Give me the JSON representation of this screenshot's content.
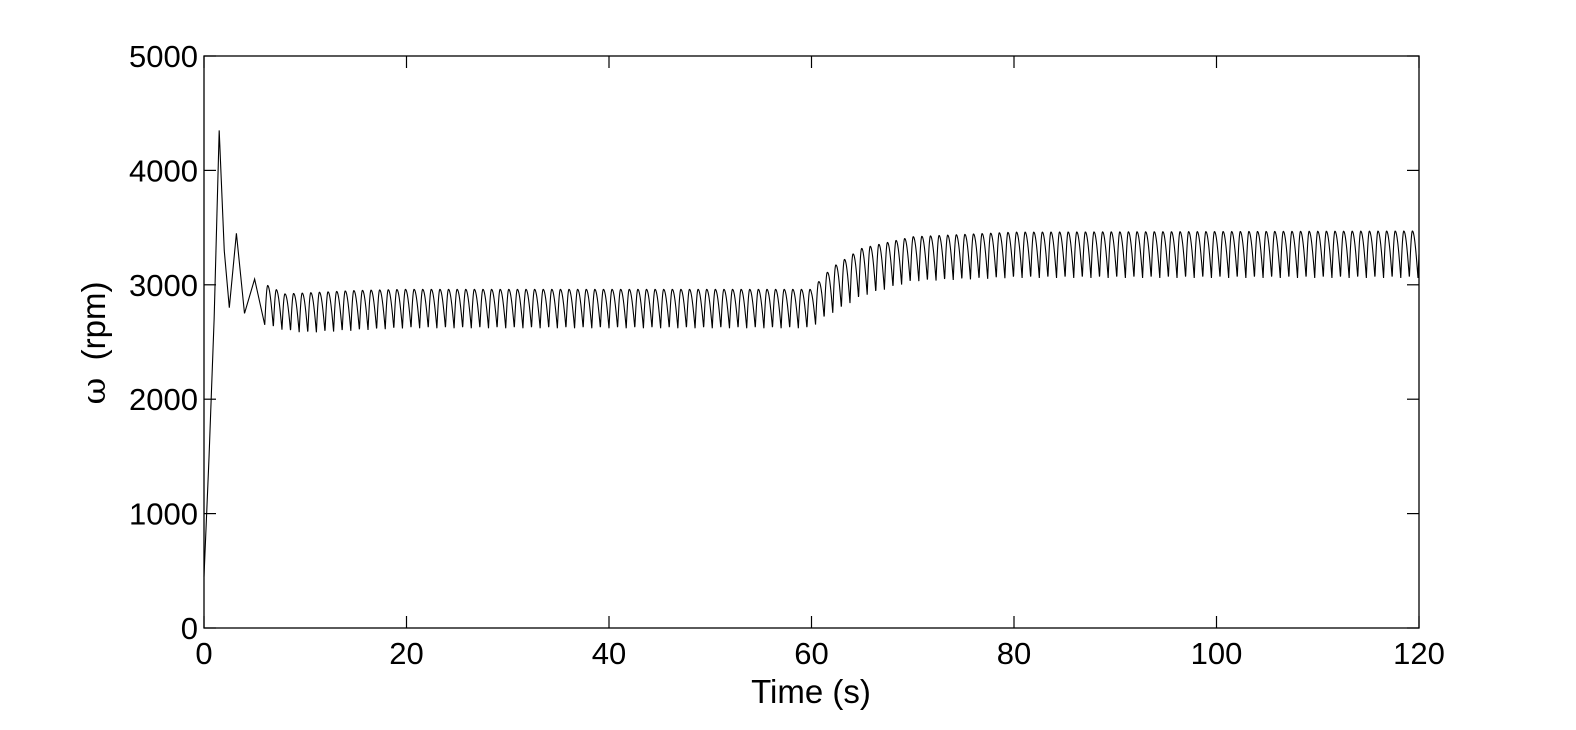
{
  "chart_data": {
    "type": "line",
    "title": "",
    "xlabel": "Time (s)",
    "ylabel_symbol": "ω",
    "ylabel_unit": "(rpm)",
    "xlim": [
      0,
      120
    ],
    "ylim": [
      0,
      5000
    ],
    "x_ticks": [
      0,
      20,
      40,
      60,
      80,
      100,
      120
    ],
    "y_ticks": [
      0,
      1000,
      2000,
      3000,
      4000,
      5000
    ],
    "grid": false,
    "legend": "none",
    "line_color": "#000000",
    "oscillation_period_s": 0.85,
    "series": [
      {
        "description_points": [
          [
            0,
            450
          ],
          [
            0.5,
            1500
          ],
          [
            1.0,
            2700
          ],
          [
            1.5,
            4350
          ],
          [
            2.0,
            3300
          ],
          [
            2.5,
            2800
          ],
          [
            3.2,
            3450
          ],
          [
            4.0,
            2750
          ],
          [
            5.0,
            3050
          ],
          [
            6.0,
            2650
          ],
          [
            8.0,
            2600
          ],
          [
            10.0,
            2580
          ],
          [
            20.0,
            2620
          ],
          [
            40.0,
            2620
          ],
          [
            60.0,
            2620
          ],
          [
            61.0,
            2700
          ],
          [
            65.0,
            2900
          ],
          [
            70.0,
            3030
          ],
          [
            80.0,
            3060
          ],
          [
            120.0,
            3060
          ]
        ],
        "upper_envelope": [
          [
            5,
            3050
          ],
          [
            8,
            2920
          ],
          [
            15,
            2950
          ],
          [
            20,
            2960
          ],
          [
            40,
            2960
          ],
          [
            60,
            2960
          ],
          [
            62,
            3150
          ],
          [
            65,
            3320
          ],
          [
            70,
            3420
          ],
          [
            80,
            3460
          ],
          [
            120,
            3470
          ]
        ]
      }
    ]
  }
}
